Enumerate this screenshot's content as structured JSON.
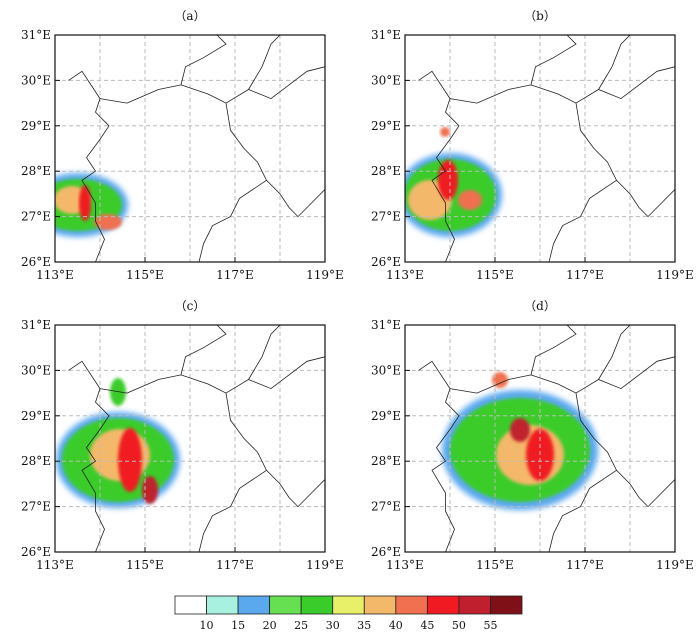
{
  "figure": {
    "panels": [
      {
        "id": "a",
        "label": "（a）"
      },
      {
        "id": "b",
        "label": "（b）"
      },
      {
        "id": "c",
        "label": "（c）"
      },
      {
        "id": "d",
        "label": "（d）"
      }
    ],
    "x_tick_labels": [
      "113°E",
      "115°E",
      "117°E",
      "119°E"
    ],
    "y_tick_labels": [
      "26°E",
      "27°E",
      "28°E",
      "29°E",
      "30°E",
      "31°E"
    ],
    "x_range": [
      113,
      119
    ],
    "y_range": [
      26,
      31
    ],
    "colorbar": {
      "levels": [
        "10",
        "15",
        "20",
        "25",
        "30",
        "35",
        "40",
        "45",
        "50",
        "55"
      ],
      "colors": [
        "#ffffff",
        "#a8f0e0",
        "#5aa8ee",
        "#66e050",
        "#3acc2a",
        "#e8f06a",
        "#f4b86a",
        "#f07050",
        "#f01a22",
        "#c0202e",
        "#801018"
      ]
    }
  }
}
